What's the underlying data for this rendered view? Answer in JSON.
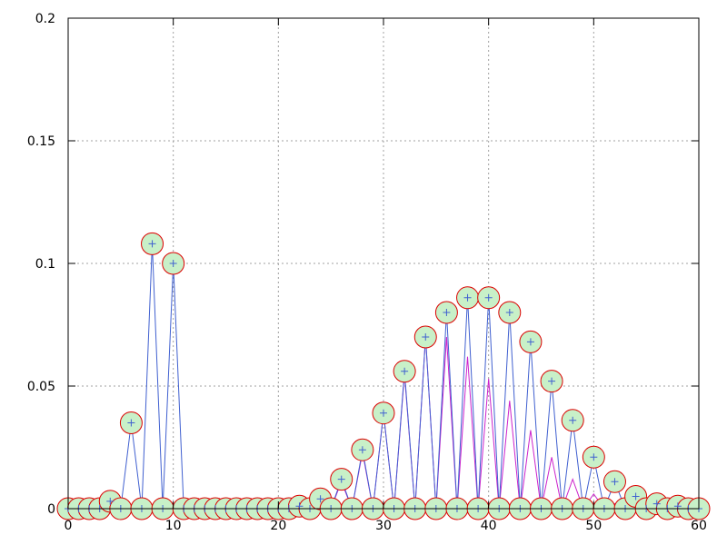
{
  "chart_data": {
    "type": "line",
    "title": "",
    "xlabel": "",
    "ylabel": "",
    "xlim": [
      0,
      60
    ],
    "ylim": [
      0,
      0.2
    ],
    "grid": true,
    "x_ticks": [
      "0",
      "10",
      "20",
      "30",
      "40",
      "50",
      "60"
    ],
    "y_ticks": [
      "0",
      "0.05",
      "0.1",
      "0.15",
      "0.2"
    ],
    "x": [
      0,
      1,
      2,
      3,
      4,
      5,
      6,
      7,
      8,
      9,
      10,
      11,
      12,
      13,
      14,
      15,
      16,
      17,
      18,
      19,
      20,
      21,
      22,
      23,
      24,
      25,
      26,
      27,
      28,
      29,
      30,
      31,
      32,
      33,
      34,
      35,
      36,
      37,
      38,
      39,
      40,
      41,
      42,
      43,
      44,
      45,
      46,
      47,
      48,
      49,
      50,
      51,
      52,
      53,
      54,
      55,
      56,
      57,
      58,
      59,
      60
    ],
    "series": [
      {
        "style": "blue line with plus markers",
        "color": "#4060d0",
        "values": [
          0,
          0,
          0,
          0,
          0.003,
          0,
          0.035,
          0,
          0.108,
          0,
          0.1,
          0,
          0,
          0,
          0,
          0,
          0,
          0,
          0,
          0,
          0,
          0,
          0.001,
          0,
          0.004,
          0,
          0.012,
          0,
          0.024,
          0,
          0.039,
          0,
          0.056,
          0,
          0.07,
          0,
          0.08,
          0,
          0.086,
          0,
          0.086,
          0,
          0.08,
          0,
          0.068,
          0,
          0.052,
          0,
          0.036,
          0,
          0.021,
          0,
          0.011,
          0,
          0.005,
          0,
          0.002,
          0,
          0.001,
          0,
          0
        ]
      },
      {
        "style": "magenta line",
        "color": "#cc22cc",
        "values": [
          0,
          0,
          0,
          0,
          0,
          0,
          0,
          0,
          0,
          0,
          0,
          0,
          0,
          0,
          0,
          0,
          0,
          0,
          0,
          0,
          0,
          0,
          0,
          0,
          0.003,
          0,
          0.011,
          0,
          0.023,
          0,
          0.039,
          0,
          0.055,
          0,
          0.07,
          0,
          0.07,
          0,
          0.062,
          0,
          0.053,
          0,
          0.044,
          0,
          0.032,
          0,
          0.021,
          0,
          0.012,
          0,
          0.006,
          0,
          0.002,
          0,
          0.001,
          0,
          0,
          0,
          0,
          0,
          0
        ]
      },
      {
        "style": "red circles with light green fill",
        "color": "#dd0000",
        "fill": "#c8f0c8",
        "values": [
          0,
          0,
          0,
          0,
          0.003,
          0,
          0.035,
          0,
          0.108,
          0,
          0.1,
          0,
          0,
          0,
          0,
          0,
          0,
          0,
          0,
          0,
          0,
          0,
          0.001,
          0,
          0.004,
          0,
          0.012,
          0,
          0.024,
          0,
          0.039,
          0,
          0.056,
          0,
          0.07,
          0,
          0.08,
          0,
          0.086,
          0,
          0.086,
          0,
          0.08,
          0,
          0.068,
          0,
          0.052,
          0,
          0.036,
          0,
          0.021,
          0,
          0.011,
          0,
          0.005,
          0,
          0.002,
          0,
          0.001,
          0,
          0
        ]
      }
    ]
  }
}
